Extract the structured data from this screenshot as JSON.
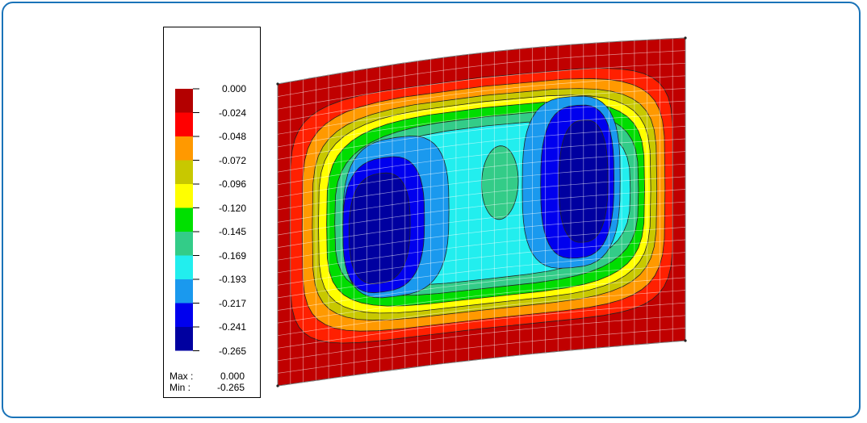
{
  "legend": {
    "levels": [
      "0.000",
      "-0.024",
      "-0.048",
      "-0.072",
      "-0.096",
      "-0.120",
      "-0.145",
      "-0.169",
      "-0.193",
      "-0.217",
      "-0.241",
      "-0.265"
    ],
    "colors": [
      "#b30000",
      "#ff0000",
      "#ff9900",
      "#c8c800",
      "#ffff00",
      "#00e000",
      "#33cc88",
      "#22eeee",
      "#1a99ee",
      "#0000ee",
      "#0000a0"
    ],
    "max_label": "Max :",
    "max_value": "0.000",
    "min_label": "Min :",
    "min_value": "-0.265"
  },
  "contour_colors": {
    "outer": "#c00000",
    "band1": "#ff2000",
    "band2": "#ff9900",
    "band3": "#c8c800",
    "band4": "#ffff00",
    "band5": "#00dd00",
    "band6": "#33cc88",
    "band7": "#22eeee",
    "band8": "#1a99ee",
    "band9": "#0000ee",
    "band10": "#0000a0"
  }
}
